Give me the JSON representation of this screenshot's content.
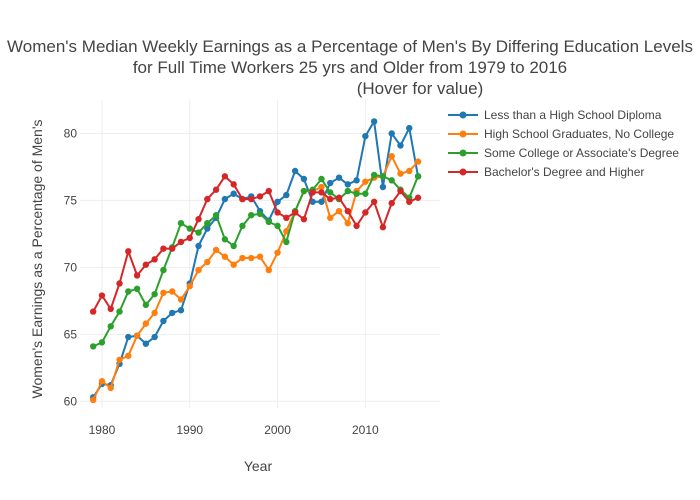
{
  "title_line1": "Women's Median Weekly Earnings as a Percentage of Men's By Differing Education Levels",
  "title_line2": "for Full Time Workers 25 yrs and Older from 1979 to 2016",
  "title_line3": "(Hover for value)",
  "chart_data": {
    "type": "line",
    "xlabel": "Year",
    "ylabel": "Women's Earnings as a Percentage of Men's",
    "xlim": [
      1977.5,
      2018.5
    ],
    "ylim": [
      59.5,
      82.5
    ],
    "xticks": [
      1980,
      1990,
      2000,
      2010
    ],
    "yticks": [
      60,
      65,
      70,
      75,
      80
    ],
    "grid": true,
    "legend_position": "top-right",
    "x": [
      1979,
      1980,
      1981,
      1982,
      1983,
      1984,
      1985,
      1986,
      1987,
      1988,
      1989,
      1990,
      1991,
      1992,
      1993,
      1994,
      1995,
      1996,
      1997,
      1998,
      1999,
      2000,
      2001,
      2002,
      2003,
      2004,
      2005,
      2006,
      2007,
      2008,
      2009,
      2010,
      2011,
      2012,
      2013,
      2014,
      2015,
      2016
    ],
    "series": [
      {
        "name": "Less than a High School Diploma",
        "color": "#1f77b4",
        "values": [
          60.3,
          61.3,
          61.2,
          62.8,
          64.8,
          64.9,
          64.3,
          64.8,
          66.0,
          66.6,
          66.8,
          68.8,
          71.6,
          72.9,
          73.7,
          75.1,
          75.5,
          75.1,
          75.3,
          74.2,
          73.5,
          74.9,
          75.4,
          77.2,
          76.6,
          74.9,
          74.9,
          76.3,
          76.7,
          76.2,
          76.5,
          79.8,
          80.9,
          76.0,
          80.0,
          79.1,
          80.4,
          76.8
        ]
      },
      {
        "name": "High School Graduates, No College",
        "color": "#ff7f0e",
        "values": [
          60.1,
          61.5,
          61.0,
          63.1,
          63.4,
          64.9,
          65.8,
          66.6,
          68.1,
          68.2,
          67.6,
          68.6,
          69.8,
          70.4,
          71.3,
          70.8,
          70.2,
          70.7,
          70.7,
          70.8,
          69.8,
          71.1,
          72.7,
          74.2,
          75.7,
          75.7,
          76.0,
          73.7,
          74.2,
          73.3,
          75.7,
          76.4,
          76.7,
          76.8,
          78.3,
          77.0,
          77.2,
          77.9
        ]
      },
      {
        "name": "Some College or Associate's Degree",
        "color": "#2ca02c",
        "values": [
          64.1,
          64.4,
          65.6,
          66.7,
          68.2,
          68.4,
          67.2,
          68.0,
          69.8,
          71.5,
          73.3,
          72.9,
          72.6,
          73.3,
          73.9,
          72.1,
          71.6,
          73.1,
          73.9,
          74.0,
          73.4,
          73.1,
          71.9,
          74.2,
          75.7,
          75.8,
          76.6,
          75.6,
          75.1,
          75.7,
          75.5,
          75.5,
          76.9,
          76.8,
          76.5,
          75.8,
          75.2,
          76.8
        ]
      },
      {
        "name": "Bachelor's Degree and Higher",
        "color": "#d62728",
        "values": [
          66.7,
          67.9,
          66.9,
          68.8,
          71.2,
          69.4,
          70.2,
          70.6,
          71.4,
          71.4,
          71.9,
          72.2,
          73.6,
          75.1,
          75.8,
          76.8,
          76.2,
          75.1,
          75.1,
          75.3,
          75.7,
          74.1,
          73.7,
          74.1,
          73.6,
          75.6,
          75.6,
          75.1,
          75.2,
          74.2,
          73.1,
          74.1,
          74.9,
          73.0,
          74.8,
          75.7,
          74.9,
          75.2
        ]
      }
    ]
  }
}
